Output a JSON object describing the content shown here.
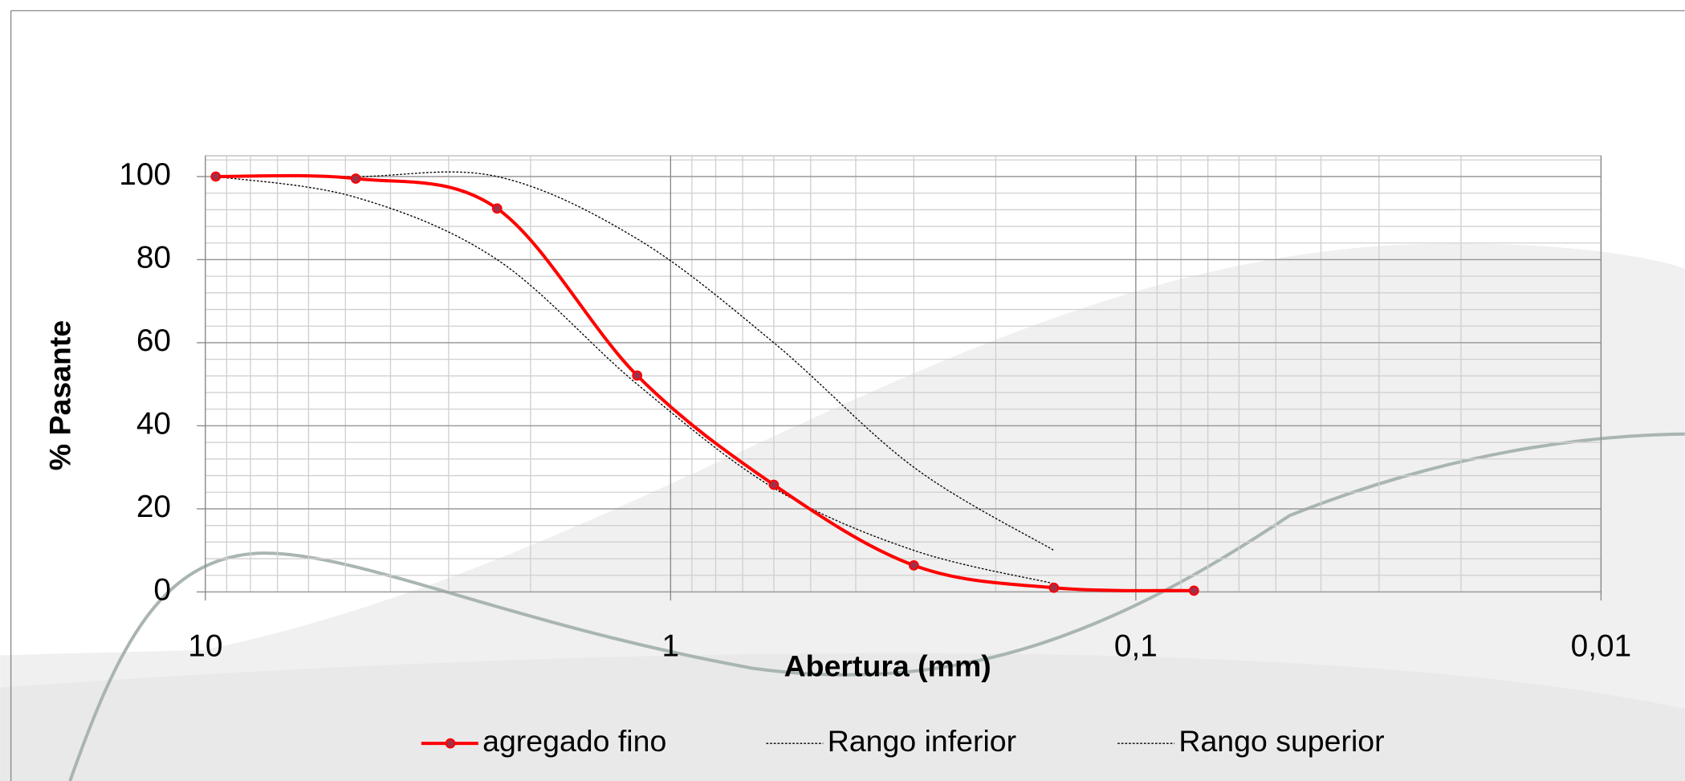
{
  "chart_data": {
    "type": "line",
    "x_label": "Abertura (mm)",
    "y_label": "% Pasante",
    "x": [
      9.5,
      4.75,
      2.36,
      1.18,
      0.6,
      0.3,
      0.15,
      0.075
    ],
    "series": [
      {
        "name": "agregado fino",
        "color": "#ff0000",
        "marker": "#a0304a",
        "style": "solid",
        "values": [
          100,
          99.5,
          92.3,
          52.1,
          25.8,
          6.4,
          1.0,
          0.3
        ]
      },
      {
        "name": "Rango inferior",
        "color": "#000000",
        "style": "dashed",
        "values": [
          100,
          95,
          80,
          50,
          25,
          10,
          2,
          null
        ]
      },
      {
        "name": "Rango superior",
        "color": "#000000",
        "style": "dashed",
        "values": [
          100,
          100,
          100,
          85,
          60,
          30,
          10,
          null
        ]
      }
    ],
    "xlim": [
      10,
      0.01
    ],
    "xticks": [
      10,
      1,
      {
        "value": 0.1,
        "label": "0,1"
      },
      {
        "value": 0.01,
        "label": "0,01"
      }
    ],
    "xscale": "log",
    "ylim": [
      0,
      105
    ],
    "yticks": [
      0,
      20,
      40,
      60,
      80,
      100
    ],
    "grid": true,
    "legend": "bottom"
  }
}
